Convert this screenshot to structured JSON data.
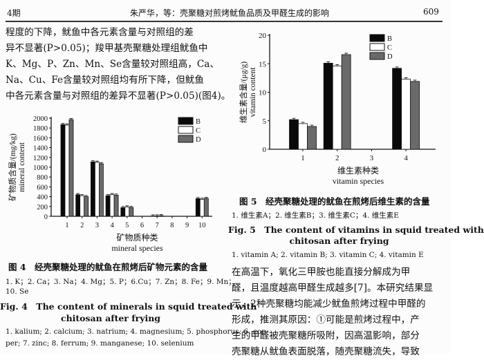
{
  "header": {
    "issue": "4期",
    "running_title": "朱严华，等：壳聚糖对煎烤鱿鱼品质及甲醛生成的影响",
    "page_number": "609"
  },
  "left_text": [
    "程度的下降，鱿鱼中各元素含量与对照组的差",
    "异不显著(P>0.05)；羧甲基壳聚糖处理组鱿鱼中",
    "K、Mg、P、Zn、Mn、Se含量较对照组高，Ca、",
    "Na、Cu、Fe含量较对照组均有所下降，但鱿鱼",
    "中各元素含量与对照组的差异不显著(P>0.05)(图4)。"
  ],
  "fig4": {
    "title_cn": "图 4　经壳聚糖处理的鱿鱼在煎烤后矿物元素的含量",
    "legend_cn": [
      "1. K；2. Ca；3. Na；4. Mg；5. P；6.Cu；7. Zn；8. Fe；9. Mn；",
      "10. Se"
    ],
    "title_en": [
      "Fig. 4　The content of minerals in squid treated with",
      "chitosan after frying"
    ],
    "legend_en": [
      "1. kalium; 2. calcium; 3. natrium; 4. magnesium; 5. phosphorus; 6. cop-",
      "per; 7. zinc; 8. ferrum; 9. manganese; 10. selenium"
    ]
  },
  "fig5": {
    "title_cn": "图 5　经壳聚糖处理的鱿鱼在煎烤后维生素的含量",
    "legend_cn": "1. 维生素A；2. 维生素B；3. 维生素C；4. 维生素E",
    "title_en": [
      "Fig. 5　The content of vitamins in squid treated with",
      "chitosan after frying"
    ],
    "legend_en": "1. vitamin A; 2. vitamin B; 3. vitamin C; 4. vitamin E"
  },
  "right_text": [
    "在高温下，氧化三甲胺也能直接分解成为甲",
    "醛，且温度越高甲醛生成越多[7]。本研究结果显",
    "示，2种壳聚糖均能减少鱿鱼煎烤过程中甲醛的",
    "形成，推测其原因：①可能是煎烤过程中，产",
    "生的甲醛被壳聚糖所吸附，因高温影响，部分",
    "壳聚糖从鱿鱼表面脱落，随壳聚糖流失，导致"
  ],
  "chart_data": [
    {
      "type": "bar",
      "categories": [
        "1",
        "2",
        "3",
        "4",
        "5",
        "6",
        "7",
        "8",
        "9",
        "10"
      ],
      "series": [
        {
          "name": "B",
          "color": "#0a0a0a",
          "values": [
            1870,
            440,
            1110,
            420,
            175,
            0,
            5,
            0,
            0,
            360
          ]
        },
        {
          "name": "C",
          "color": "#ffffff",
          "values": [
            1860,
            420,
            1100,
            440,
            190,
            0,
            8,
            0,
            0,
            345
          ]
        },
        {
          "name": "D",
          "color": "#6a6a6a",
          "values": [
            1970,
            400,
            1070,
            430,
            180,
            0,
            12,
            0,
            0,
            365
          ]
        }
      ],
      "ylabel_cn": "矿物质含量/(mg/kg)",
      "ylabel_en": "mineral content",
      "xlabel_cn": "矿物质种类",
      "xlabel_en": "mineral species",
      "ylim": [
        0,
        2000
      ],
      "yticks": [
        0,
        200,
        400,
        600,
        800,
        1000,
        1200,
        1400,
        1600,
        1800,
        2000
      ],
      "legend": "top-right",
      "grid": false,
      "error_bars": true
    },
    {
      "type": "bar",
      "categories": [
        "1",
        "2",
        "3",
        "4"
      ],
      "series": [
        {
          "name": "B",
          "color": "#0a0a0a",
          "values": [
            5.2,
            15.1,
            0,
            14.2
          ]
        },
        {
          "name": "C",
          "color": "#ffffff",
          "values": [
            4.5,
            14.6,
            0,
            12.3
          ]
        },
        {
          "name": "D",
          "color": "#6a6a6a",
          "values": [
            4.0,
            16.6,
            0,
            11.9
          ]
        }
      ],
      "ylabel_cn": "维生素含量/(μg/g)",
      "ylabel_en": "vitamin content",
      "xlabel_cn": "维生素种类",
      "xlabel_en": "vitamin species",
      "ylim": [
        0,
        20
      ],
      "yticks": [
        0,
        5,
        10,
        15,
        20
      ],
      "legend": "top-right",
      "grid": false,
      "error_bars": true
    }
  ]
}
